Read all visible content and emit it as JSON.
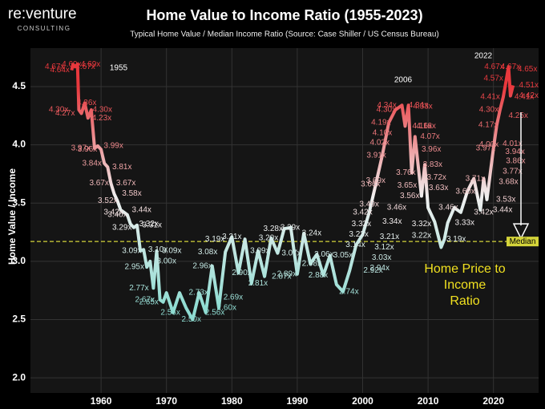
{
  "brand": {
    "name": "re:venture",
    "tagline": "CONSULTING"
  },
  "chart_data": {
    "type": "line",
    "title": "Home Value to Income Ratio (1955-2023)",
    "subtitle": "Typical Home Value / Median Income Ratio (Source: Case Shiller / US Census Bureau)",
    "y_label": "Home Value / Income",
    "xlim": [
      1949.2,
      2026.9
    ],
    "ylim": [
      1.87,
      4.83
    ],
    "xticks": [
      1960,
      1970,
      1980,
      1990,
      2000,
      2010,
      2020
    ],
    "yticks": [
      {
        "value": 2,
        "label": "2.0"
      },
      2.5,
      {
        "value": 3,
        "label": "3.0"
      },
      3.5,
      {
        "value": 4,
        "label": "4.0"
      },
      4.5
    ],
    "grid": true,
    "color_stops": [
      {
        "value": 4.5,
        "color": "#e8383d"
      },
      {
        "value": 3.3,
        "color": "#f0f0f0"
      },
      {
        "value": 2.6,
        "color": "#8fdcd2"
      }
    ],
    "series": [
      {
        "x": [
          1955.5,
          1955.7,
          1956,
          1956.4,
          1956.6,
          1957,
          1957.5,
          1958,
          1958.5,
          1959,
          1959.5,
          1960,
          1960.5,
          1961,
          1961.5,
          1962,
          1962.5,
          1963,
          1963.5,
          1964,
          1964.5,
          1965,
          1965.5,
          1966,
          1966.5,
          1967,
          1967.5,
          1968,
          1968.5,
          1969,
          1969.5,
          1970,
          1971,
          1972,
          1973,
          1974,
          1975,
          1976,
          1977,
          1978,
          1979,
          1980,
          1981,
          1982,
          1983,
          1984,
          1985,
          1986,
          1987,
          1988,
          1989,
          1990,
          1991,
          1992,
          1993,
          1994,
          1995,
          1996,
          1997,
          1998,
          1999,
          2000,
          2001,
          2002,
          2003,
          2004,
          2005,
          2006,
          2006.5,
          2007,
          2007.5,
          2008,
          2009,
          2009.5,
          2010,
          2011,
          2012,
          2012.5,
          2013,
          2014,
          2015,
          2016,
          2017,
          2018,
          2018.5,
          2019,
          2020,
          2020.5,
          2021,
          2021.5,
          2022,
          2022.3,
          2022.6,
          2023
        ],
        "values": [
          4.64,
          4.69,
          4.67,
          4.69,
          4.3,
          4.27,
          4.36,
          4.23,
          4.3,
          3.97,
          3.99,
          3.96,
          3.84,
          3.81,
          3.67,
          3.58,
          3.52,
          3.44,
          3.42,
          3.4,
          3.32,
          3.29,
          3.31,
          3.09,
          3.1,
          2.95,
          3.0,
          2.77,
          3.09,
          2.67,
          2.65,
          2.73,
          2.56,
          2.73,
          2.6,
          2.5,
          2.73,
          2.56,
          2.96,
          2.6,
          3.08,
          3.21,
          2.9,
          3.19,
          2.81,
          3.09,
          2.87,
          3.2,
          3.07,
          3.28,
          3.29,
          2.89,
          3.24,
          2.98,
          3.06,
          2.88,
          3.05,
          2.8,
          2.74,
          2.92,
          3.14,
          3.23,
          3.42,
          3.66,
          3.91,
          4.19,
          4.3,
          4.34,
          4.16,
          4.34,
          3.76,
          4.07,
          3.56,
          3.83,
          3.46,
          3.34,
          3.12,
          3.19,
          3.33,
          3.46,
          3.42,
          3.6,
          3.71,
          3.44,
          3.71,
          3.53,
          3.97,
          4.17,
          4.3,
          4.41,
          4.57,
          4.67,
          4.42,
          4.51
        ]
      }
    ],
    "data_labels": {
      "x": [
        1955.5,
        1952.9,
        1958.4,
        1953.7,
        1957.6,
        1957.8,
        1953.5,
        1960.2,
        1954.5,
        1960.1,
        1956.9,
        1961.9,
        1957.9,
        1963.2,
        1958.6,
        1963.8,
        1959.7,
        1964.7,
        1961,
        1966.2,
        1961.9,
        1967.3,
        1962.5,
        1967.8,
        1963.2,
        1968.7,
        1964.7,
        1970.8,
        1970,
        1965.1,
        1965.8,
        1966.7,
        1967.3,
        1970.6,
        1973.8,
        1974.9,
        1975.5,
        1977.4,
        1979.2,
        1980.2,
        1976.3,
        1977.4,
        1980,
        1981.5,
        1984,
        1984.3,
        1985.6,
        1987.6,
        1986.3,
        1988.9,
        1988.4,
        1989.1,
        1992.2,
        1992.2,
        1994.1,
        1993.2,
        1997,
        1997.9,
        1998.9,
        2001.6,
        1999.4,
        1999.8,
        2000,
        2001,
        2002,
        2001.2,
        2002.1,
        2002.6,
        2003,
        2002.8,
        2003.6,
        2003.7,
        2008.5,
        2009.2,
        2009.1,
        2009.7,
        2010.3,
        2010.5,
        2010.7,
        2006.6,
        2011.3,
        2006.8,
        2011.6,
        2007.2,
        2005.2,
        2013.1,
        2004.5,
        2009,
        2004.1,
        2009,
        2003.3,
        2002.9,
        2002.6,
        2014.3,
        2015.6,
        2015.7,
        2017.2,
        2018.5,
        2021.4,
        2018.8,
        2019.3,
        2019.2,
        2019.3,
        2019.5,
        2020,
        2020.1,
        2022.6,
        2025.2,
        2025.4,
        2025.4,
        2024.7,
        2023.8,
        2022.9,
        2023.3,
        2023.4,
        2022.9,
        2022.3,
        2021.9
      ],
      "values": [
        4.69,
        4.67,
        4.69,
        4.64,
        4.67,
        4.36,
        4.3,
        4.3,
        4.27,
        4.23,
        3.97,
        3.99,
        3.96,
        3.81,
        3.84,
        3.67,
        3.67,
        3.58,
        3.52,
        3.44,
        3.42,
        3.32,
        3.4,
        3.31,
        3.29,
        3.1,
        3.09,
        3.09,
        3.0,
        2.95,
        2.77,
        2.67,
        2.65,
        2.56,
        2.5,
        2.73,
        2.96,
        2.56,
        2.6,
        2.69,
        3.08,
        3.19,
        3.21,
        2.9,
        2.81,
        3.09,
        3.2,
        2.87,
        3.28,
        3.29,
        2.89,
        3.07,
        3.24,
        2.98,
        3.06,
        2.88,
        3.05,
        2.74,
        3.14,
        2.92,
        3.23,
        3.32,
        3.42,
        3.49,
        3.69,
        3.66,
        3.91,
        4.02,
        4.1,
        4.19,
        4.3,
        4.34,
        4.34,
        4.33,
        4.16,
        4.16,
        4.07,
        3.96,
        3.83,
        3.76,
        3.72,
        3.65,
        3.63,
        3.56,
        3.46,
        3.46,
        3.34,
        3.32,
        3.21,
        3.22,
        3.12,
        3.03,
        2.94,
        3.19,
        3.33,
        3.6,
        3.71,
        3.42,
        3.44,
        3.97,
        4.0,
        4.17,
        4.3,
        4.41,
        4.57,
        4.67,
        4.67,
        4.65,
        4.51,
        4.42,
        4.41,
        4.25,
        4.01,
        3.94,
        3.86,
        3.77,
        3.68,
        3.53
      ],
      "value_labels": [
        "4.69x",
        "4.67x",
        "4.69x",
        "4.64x",
        "4.67x",
        "4.36x",
        "4.30x",
        "4.30x",
        "4.27x",
        "4.23x",
        "3.97x",
        "3.99x",
        "3.96x",
        "3.81x",
        "3.84x",
        "3.67x",
        "3.67x",
        "3.58x",
        "3.52x",
        "3.44x",
        "3.42x",
        "3.32x",
        "3.40x",
        "3.31x",
        "3.29x",
        "3.10x",
        "3.09x",
        "3.09x",
        "3.00x",
        "2.95x",
        "2.77x",
        "2.67x",
        "2.65x",
        "2.56x",
        "2.50x",
        "2.73x",
        "2.96x",
        "2.56x",
        "2.60x",
        "2.69x",
        "3.08x",
        "3.19x",
        "3.21x",
        "2.90x",
        "2.81x",
        "3.09x",
        "3.20x",
        "2.87x",
        "3.28x",
        "3.29x",
        "2.89x",
        "3.07x",
        "3.24x",
        "2.98x",
        "3.06x",
        "2.88x",
        "3.05x",
        "2.74x",
        "3.14x",
        "2.92x",
        "3.23x",
        "3.32x",
        "3.42x",
        "3.49x",
        "3.69x",
        "3.66x",
        "3.91x",
        "4.02x",
        "4.10x",
        "4.19x",
        "4.30x",
        "4.34x",
        "4.34x",
        "4.33x",
        "4.16x",
        "4.16x",
        "4.07x",
        "3.96x",
        "3.83x",
        "3.76x",
        "3.72x",
        "3.65x",
        "3.63x",
        "3.56x",
        "3.46x",
        "3.46x",
        "3.34x",
        "3.32x",
        "3.21x",
        "3.22x",
        "3.12x",
        "3.03x",
        "2.94x",
        "3.19x",
        "3.33x",
        "3.60x",
        "3.71x",
        "3.42x",
        "3.44x",
        "3.97x",
        "4.00x",
        "4.17x",
        "4.30x",
        "4.41x",
        "4.57x",
        "4.67x",
        "4.67x",
        "4.65x",
        "4.51x",
        "4.42x",
        "4.41x",
        "4.25x",
        "4.01x",
        "3.94x",
        "3.86x",
        "3.77x",
        "3.68x",
        "3.53x"
      ]
    },
    "year_notes": [
      "1955",
      "2006",
      "2022"
    ],
    "median": {
      "value": 3.17,
      "label": "Median",
      "color": "#d4d43a"
    },
    "callout": [
      "Home Price to",
      "Income",
      "Ratio"
    ],
    "callout_color": "#f0e020"
  }
}
